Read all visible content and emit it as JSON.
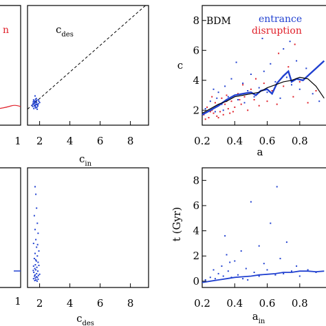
{
  "chart_data": [
    {
      "id": "left-top-partial",
      "type": "scatter",
      "tick_labels_x": [
        "1"
      ],
      "legend_fragment": "n",
      "colors": {
        "fragment": "#e0202a",
        "line": "#e0202a"
      }
    },
    {
      "id": "c-des-vs-c-in",
      "type": "scatter",
      "title": {
        "main": "c",
        "sub": "des"
      },
      "xlabel": {
        "main": "c",
        "sub": "in"
      },
      "xlim": [
        1.2,
        9.2
      ],
      "ylim": [
        0,
        9
      ],
      "x_ticks": [
        "2",
        "4",
        "6",
        "8"
      ],
      "diagonal": "dashed y = x",
      "series": [
        {
          "color": "#2040d0",
          "points": [
            [
              1.55,
              1.4
            ],
            [
              1.6,
              1.6
            ],
            [
              1.65,
              1.5
            ],
            [
              1.7,
              1.8
            ],
            [
              1.75,
              1.3
            ],
            [
              1.8,
              1.7
            ],
            [
              1.85,
              1.55
            ],
            [
              1.9,
              1.9
            ],
            [
              1.62,
              1.25
            ],
            [
              1.72,
              1.45
            ],
            [
              1.78,
              2.0
            ],
            [
              1.58,
              1.75
            ],
            [
              1.68,
              1.65
            ],
            [
              1.82,
              1.35
            ],
            [
              1.92,
              1.6
            ],
            [
              1.5,
              1.5
            ],
            [
              1.95,
              1.8
            ],
            [
              1.7,
              2.2
            ],
            [
              1.6,
              1.9
            ],
            [
              1.88,
              1.45
            ],
            [
              1.75,
              1.55
            ],
            [
              1.66,
              1.7
            ],
            [
              1.79,
              1.85
            ],
            [
              1.84,
              1.2
            ],
            [
              1.57,
              1.62
            ],
            [
              2.0,
              1.7
            ],
            [
              1.73,
              1.95
            ],
            [
              1.69,
              1.38
            ],
            [
              1.63,
              1.82
            ],
            [
              1.81,
              1.58
            ]
          ]
        }
      ]
    },
    {
      "id": "c-vs-a",
      "type": "scatter",
      "annotation": "BDM",
      "legend": [
        "entrance",
        "disruption"
      ],
      "xlabel": "a",
      "ylabel": "c",
      "xlim": [
        0.2,
        0.97
      ],
      "ylim": [
        1,
        9
      ],
      "x_ticks": [
        "0.2",
        "0.4",
        "0.6",
        "0.8"
      ],
      "y_ticks": [
        "2",
        "4",
        "6",
        "8"
      ],
      "series": [
        {
          "name": "entrance",
          "color": "#2040d0",
          "points": [
            [
              0.22,
              2.1
            ],
            [
              0.25,
              2.6
            ],
            [
              0.28,
              1.9
            ],
            [
              0.3,
              3.2
            ],
            [
              0.32,
              2.4
            ],
            [
              0.34,
              3.6
            ],
            [
              0.36,
              2.9
            ],
            [
              0.38,
              4.1
            ],
            [
              0.4,
              3.0
            ],
            [
              0.42,
              2.7
            ],
            [
              0.45,
              3.8
            ],
            [
              0.48,
              3.3
            ],
            [
              0.5,
              4.4
            ],
            [
              0.52,
              2.9
            ],
            [
              0.55,
              3.5
            ],
            [
              0.58,
              4.6
            ],
            [
              0.6,
              3.2
            ],
            [
              0.62,
              5.1
            ],
            [
              0.65,
              3.9
            ],
            [
              0.68,
              2.8
            ],
            [
              0.7,
              6.1
            ],
            [
              0.72,
              4.2
            ],
            [
              0.75,
              3.7
            ],
            [
              0.78,
              5.3
            ],
            [
              0.8,
              3.4
            ],
            [
              0.84,
              4.8
            ],
            [
              0.88,
              3.1
            ],
            [
              0.92,
              2.6
            ],
            [
              0.33,
              2.0
            ],
            [
              0.29,
              2.8
            ],
            [
              0.46,
              2.5
            ],
            [
              0.57,
              6.8
            ],
            [
              0.74,
              6.6
            ],
            [
              0.27,
              3.4
            ],
            [
              0.41,
              5.2
            ]
          ]
        },
        {
          "name": "disruption",
          "color": "#e0202a",
          "points": [
            [
              0.21,
              1.7
            ],
            [
              0.23,
              2.2
            ],
            [
              0.24,
              1.5
            ],
            [
              0.26,
              2.0
            ],
            [
              0.27,
              1.8
            ],
            [
              0.28,
              2.5
            ],
            [
              0.29,
              1.6
            ],
            [
              0.3,
              2.3
            ],
            [
              0.31,
              1.9
            ],
            [
              0.32,
              2.8
            ],
            [
              0.33,
              1.7
            ],
            [
              0.34,
              2.4
            ],
            [
              0.35,
              3.0
            ],
            [
              0.36,
              2.1
            ],
            [
              0.37,
              1.8
            ],
            [
              0.38,
              2.6
            ],
            [
              0.4,
              2.2
            ],
            [
              0.42,
              3.1
            ],
            [
              0.44,
              2.4
            ],
            [
              0.46,
              2.9
            ],
            [
              0.48,
              2.0
            ],
            [
              0.5,
              3.4
            ],
            [
              0.52,
              2.7
            ],
            [
              0.55,
              2.3
            ],
            [
              0.58,
              3.8
            ],
            [
              0.6,
              2.6
            ],
            [
              0.63,
              3.3
            ],
            [
              0.66,
              2.4
            ],
            [
              0.7,
              3.6
            ],
            [
              0.73,
              4.9
            ],
            [
              0.76,
              2.9
            ],
            [
              0.8,
              3.9
            ],
            [
              0.85,
              2.5
            ],
            [
              0.9,
              3.3
            ],
            [
              0.22,
              1.4
            ],
            [
              0.25,
              1.9
            ],
            [
              0.3,
              1.5
            ],
            [
              0.35,
              2.6
            ],
            [
              0.39,
              1.9
            ],
            [
              0.43,
              2.7
            ],
            [
              0.53,
              4.1
            ],
            [
              0.67,
              5.8
            ],
            [
              0.77,
              6.4
            ],
            [
              0.26,
              2.9
            ],
            [
              0.45,
              3.7
            ]
          ]
        }
      ],
      "lines": [
        {
          "color": "#2040d0",
          "width": 2.4,
          "points": [
            [
              0.2,
              1.7
            ],
            [
              0.25,
              2.0
            ],
            [
              0.3,
              2.3
            ],
            [
              0.35,
              2.7
            ],
            [
              0.4,
              3.0
            ],
            [
              0.45,
              3.1
            ],
            [
              0.5,
              3.2
            ],
            [
              0.53,
              3.0
            ],
            [
              0.56,
              3.3
            ],
            [
              0.6,
              3.4
            ],
            [
              0.63,
              3.1
            ],
            [
              0.66,
              3.8
            ],
            [
              0.7,
              4.3
            ],
            [
              0.73,
              4.6
            ],
            [
              0.75,
              3.9
            ],
            [
              0.78,
              4.1
            ],
            [
              0.82,
              4.0
            ],
            [
              0.86,
              4.4
            ],
            [
              0.9,
              4.8
            ],
            [
              0.95,
              5.3
            ]
          ]
        },
        {
          "color": "#000000",
          "width": 1.2,
          "points": [
            [
              0.2,
              1.8
            ],
            [
              0.25,
              2.1
            ],
            [
              0.3,
              2.4
            ],
            [
              0.35,
              2.6
            ],
            [
              0.4,
              2.9
            ],
            [
              0.45,
              3.0
            ],
            [
              0.5,
              3.1
            ],
            [
              0.55,
              3.2
            ],
            [
              0.6,
              3.5
            ],
            [
              0.65,
              3.7
            ],
            [
              0.7,
              3.9
            ],
            [
              0.75,
              4.0
            ],
            [
              0.8,
              4.2
            ],
            [
              0.85,
              4.1
            ],
            [
              0.9,
              3.6
            ],
            [
              0.95,
              2.8
            ]
          ]
        }
      ]
    },
    {
      "id": "left-bottom-partial",
      "type": "scatter",
      "tick_labels_x": [
        "1"
      ]
    },
    {
      "id": "t-vs-c-des",
      "type": "scatter",
      "xlabel": {
        "main": "c",
        "sub": "des"
      },
      "xlim": [
        1.2,
        9.2
      ],
      "ylim": [
        -0.5,
        9
      ],
      "x_ticks": [
        "2",
        "4",
        "6",
        "8"
      ],
      "series": [
        {
          "color": "#2040d0",
          "points": [
            [
              1.7,
              7.5
            ],
            [
              1.75,
              6.9
            ],
            [
              1.8,
              5.8
            ],
            [
              1.65,
              5.2
            ],
            [
              1.85,
              4.6
            ],
            [
              1.7,
              4.1
            ],
            [
              1.9,
              3.8
            ],
            [
              1.75,
              3.3
            ],
            [
              1.6,
              3.0
            ],
            [
              1.8,
              2.7
            ],
            [
              1.95,
              2.4
            ],
            [
              1.7,
              2.2
            ],
            [
              1.85,
              2.0
            ],
            [
              1.65,
              1.8
            ],
            [
              1.78,
              1.6
            ],
            [
              1.9,
              1.5
            ],
            [
              1.72,
              1.3
            ],
            [
              1.6,
              1.2
            ],
            [
              1.82,
              1.1
            ],
            [
              1.68,
              1.0
            ],
            [
              1.75,
              0.9
            ],
            [
              1.88,
              0.8
            ],
            [
              1.62,
              0.7
            ],
            [
              1.8,
              0.6
            ],
            [
              1.7,
              0.5
            ],
            [
              1.92,
              0.45
            ],
            [
              1.66,
              0.4
            ],
            [
              1.78,
              0.35
            ],
            [
              1.85,
              0.3
            ],
            [
              1.72,
              0.25
            ],
            [
              1.6,
              0.2
            ],
            [
              1.9,
              0.15
            ],
            [
              1.76,
              0.1
            ],
            [
              1.68,
              0.05
            ],
            [
              1.83,
              0.0
            ],
            [
              2.0,
              0.55
            ],
            [
              1.58,
              0.85
            ],
            [
              1.95,
              1.25
            ],
            [
              1.74,
              1.7
            ],
            [
              1.87,
              2.9
            ]
          ]
        }
      ]
    },
    {
      "id": "t-vs-a-in",
      "type": "scatter",
      "xlabel": {
        "main": "a",
        "sub": "in"
      },
      "ylabel": "t (Gyr)",
      "xlim": [
        0.2,
        0.97
      ],
      "ylim": [
        -0.5,
        9
      ],
      "x_ticks": [
        "0.2",
        "0.4",
        "0.6",
        "0.8"
      ],
      "y_ticks": [
        "0",
        "2",
        "4",
        "6",
        "8"
      ],
      "series": [
        {
          "color": "#2040d0",
          "points": [
            [
              0.22,
              0.1
            ],
            [
              0.25,
              0.3
            ],
            [
              0.28,
              0.2
            ],
            [
              0.3,
              0.6
            ],
            [
              0.32,
              1.2
            ],
            [
              0.33,
              0.4
            ],
            [
              0.35,
              2.1
            ],
            [
              0.36,
              0.8
            ],
            [
              0.38,
              0.3
            ],
            [
              0.4,
              1.6
            ],
            [
              0.42,
              0.5
            ],
            [
              0.45,
              0.2
            ],
            [
              0.47,
              1.0
            ],
            [
              0.5,
              6.3
            ],
            [
              0.52,
              0.7
            ],
            [
              0.55,
              0.4
            ],
            [
              0.58,
              1.4
            ],
            [
              0.6,
              0.9
            ],
            [
              0.62,
              4.6
            ],
            [
              0.65,
              0.5
            ],
            [
              0.68,
              1.8
            ],
            [
              0.7,
              0.6
            ],
            [
              0.72,
              3.1
            ],
            [
              0.75,
              0.8
            ],
            [
              0.78,
              1.2
            ],
            [
              0.8,
              0.4
            ],
            [
              0.85,
              0.9
            ],
            [
              0.9,
              0.7
            ],
            [
              0.34,
              3.6
            ],
            [
              0.44,
              2.4
            ],
            [
              0.27,
              0.9
            ],
            [
              0.55,
              2.8
            ],
            [
              0.37,
              1.5
            ],
            [
              0.66,
              7.5
            ],
            [
              0.48,
              0.1
            ]
          ]
        }
      ],
      "lines": [
        {
          "color": "#2040d0",
          "width": 1.8,
          "points": [
            [
              0.2,
              -0.1
            ],
            [
              0.25,
              0.0
            ],
            [
              0.3,
              0.1
            ],
            [
              0.35,
              0.2
            ],
            [
              0.4,
              0.3
            ],
            [
              0.45,
              0.35
            ],
            [
              0.5,
              0.4
            ],
            [
              0.55,
              0.5
            ],
            [
              0.6,
              0.55
            ],
            [
              0.65,
              0.6
            ],
            [
              0.7,
              0.7
            ],
            [
              0.75,
              0.7
            ],
            [
              0.8,
              0.8
            ],
            [
              0.85,
              0.8
            ],
            [
              0.9,
              0.75
            ],
            [
              0.95,
              0.8
            ]
          ]
        }
      ]
    }
  ]
}
